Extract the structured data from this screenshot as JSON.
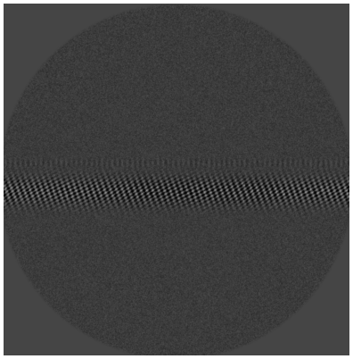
{
  "image": {
    "kind": "grayscale tomographic reconstruction",
    "colors": {
      "background": "#454545",
      "noise_mid": "#3a3a3a",
      "band_light": "#d8d8d8",
      "band_dark": "#0e0e0e"
    }
  }
}
